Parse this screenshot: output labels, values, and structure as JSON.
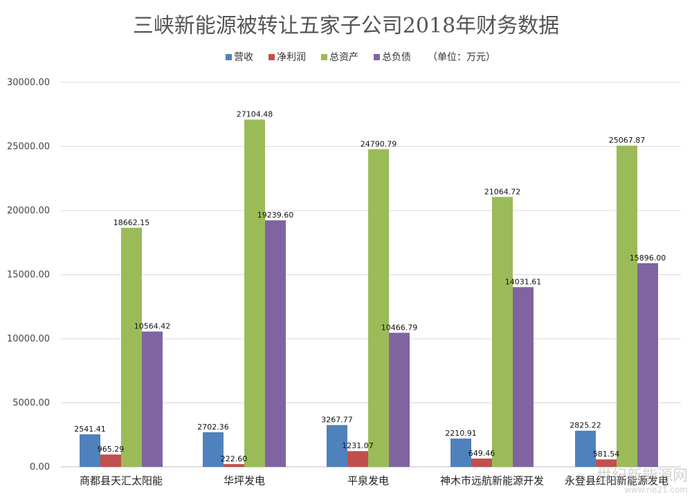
{
  "chart_data": {
    "type": "bar",
    "title": "三峡新能源被转让五家子公司2018年财务数据",
    "legend_unit": "（单位：万元）",
    "legend_position": "top",
    "categories": [
      "商都县天汇太阳能",
      "华坪发电",
      "平泉发电",
      "神木市远航新能源开发",
      "永登县红阳新能源发电"
    ],
    "series": [
      {
        "name": "营收",
        "color": "#4f81bd",
        "values": [
          2541.41,
          2702.36,
          3267.77,
          2210.91,
          2825.22
        ],
        "labels": [
          "2541.41",
          "2702.36",
          "3267.77",
          "2210.91",
          "2825.22"
        ]
      },
      {
        "name": "净利润",
        "color": "#c0504d",
        "values": [
          965.29,
          222.6,
          1231.07,
          649.46,
          581.54
        ],
        "labels": [
          "965.29",
          "222.60",
          "1231.07",
          "649.46",
          "581.54"
        ]
      },
      {
        "name": "总资产",
        "color": "#9bbb59",
        "values": [
          18662.15,
          27104.48,
          24790.79,
          21064.72,
          25067.87
        ],
        "labels": [
          "18662.15",
          "27104.48",
          "24790.79",
          "21064.72",
          "25067.87"
        ]
      },
      {
        "name": "总负债",
        "color": "#8064a2",
        "values": [
          10564.42,
          19239.6,
          10466.79,
          14031.61,
          15896.0
        ],
        "labels": [
          "10564.42",
          "19239.60",
          "10466.79",
          "14031.61",
          "15896.00"
        ]
      }
    ],
    "ylim": [
      0,
      30000
    ],
    "yticks": [
      "0.00",
      "5000.00",
      "10000.00",
      "15000.00",
      "20000.00",
      "25000.00",
      "30000.00"
    ],
    "grid": true
  },
  "watermark": {
    "text": "世纪新能源网",
    "url": "www.ne21.com"
  }
}
